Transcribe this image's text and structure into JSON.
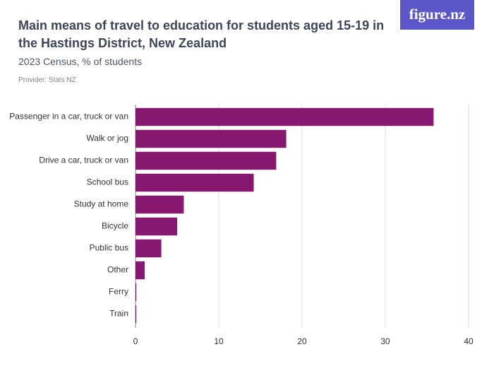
{
  "header": {
    "logo": "figure.nz"
  },
  "chart_data": {
    "type": "bar",
    "orientation": "horizontal",
    "title": "Main means of travel to education for students aged 15-19 in the Hastings District, New Zealand",
    "subtitle": "2023 Census, % of students",
    "provider": "Provider: Stats NZ",
    "categories": [
      "Passenger in a car, truck or van",
      "Walk or jog",
      "Drive a car, truck or van",
      "School bus",
      "Study at home",
      "Bicycle",
      "Public bus",
      "Other",
      "Ferry",
      "Train"
    ],
    "values": [
      35.8,
      18.1,
      16.9,
      14.2,
      5.8,
      5.0,
      3.1,
      1.1,
      0.1,
      0.1
    ],
    "color": "#86196f",
    "xlim": [
      0,
      40
    ],
    "xticks": [
      0,
      10,
      20,
      30,
      40
    ],
    "grid": true
  }
}
